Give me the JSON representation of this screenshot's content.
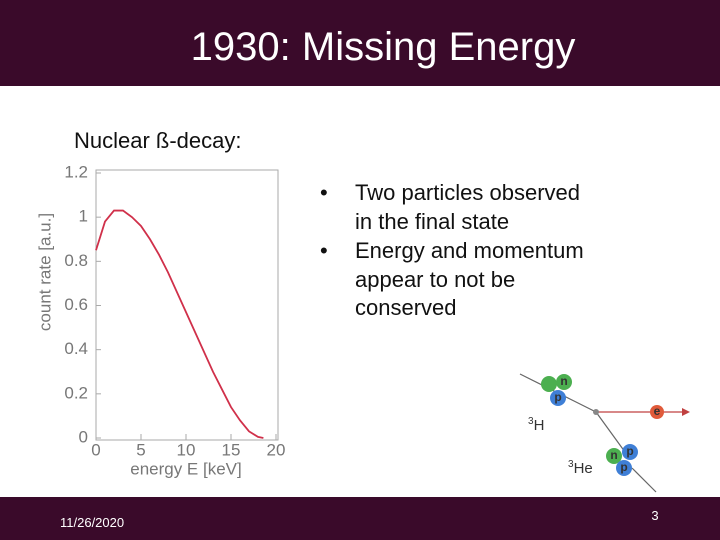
{
  "title": "1930: Missing Energy",
  "subtitle": "Nuclear ß-decay:",
  "bullets": [
    [
      "Two particles observed",
      "in the final state"
    ],
    [
      "Energy and momentum",
      "appear to not be",
      "conserved"
    ]
  ],
  "footer": {
    "date": "11/26/2020",
    "page": "3"
  },
  "diagram": {
    "tritium": {
      "mass": "3",
      "symbol": "H"
    },
    "helium": {
      "mass": "3",
      "symbol": "He"
    },
    "tritium_nucleons": [
      "n",
      "p"
    ],
    "helium_nucleons": [
      "n",
      "p",
      "p"
    ],
    "electron": "e"
  },
  "chart_data": {
    "type": "line",
    "xlabel": "energy E  [keV]",
    "ylabel": "count rate  [a.u.]",
    "x": [
      0,
      1,
      2,
      3,
      4,
      5,
      6,
      7,
      8,
      9,
      10,
      11,
      12,
      13,
      14,
      15,
      16,
      17,
      18,
      18.6
    ],
    "series": [
      {
        "color": "#d0304a",
        "values": [
          0.85,
          0.98,
          1.03,
          1.03,
          1.0,
          0.96,
          0.9,
          0.83,
          0.75,
          0.66,
          0.57,
          0.48,
          0.39,
          0.3,
          0.22,
          0.14,
          0.08,
          0.03,
          0.005,
          0
        ]
      }
    ],
    "xlim": [
      0,
      20
    ],
    "ylim": [
      0,
      1.2
    ],
    "xticks": [
      0,
      5,
      10,
      15,
      20
    ],
    "yticks": [
      0,
      0.2,
      0.4,
      0.6,
      0.8,
      1,
      1.2
    ]
  }
}
